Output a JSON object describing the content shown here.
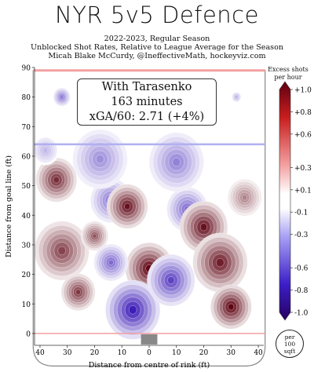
{
  "chart_data": {
    "type": "heatmap",
    "title": "NYR 5v5 Defence",
    "subtitle_lines": [
      "2022-2023, Regular Season",
      "Unblocked Shot Rates, Relative to League Average for the Season",
      "Micah Blake McCurdy, @IneffectiveMath, hockeyviz.com"
    ],
    "xlabel": "Distance from centre of rink (ft)",
    "ylabel": "Distance from goal line (ft)",
    "xlim": [
      42,
      -42
    ],
    "ylim": [
      -4,
      90
    ],
    "xticks": [
      "40",
      "30",
      "20",
      "10",
      "0",
      "10",
      "20",
      "30",
      "40"
    ],
    "xtick_values": [
      40,
      30,
      20,
      10,
      0,
      -10,
      -20,
      -30,
      -40
    ],
    "yticks": [
      0,
      10,
      20,
      30,
      40,
      50,
      60,
      70,
      80,
      90
    ],
    "annotation": {
      "line1": "With Tarasenko",
      "line2": "163 minutes",
      "line3": "xGA/60: 2.71 (+4%)"
    },
    "colorbar": {
      "title": "Excess shots per hour",
      "ticks": [
        "+1.0",
        "+0.8",
        "+0.6",
        "+0.3",
        "+0.1",
        "-0.1",
        "-0.3",
        "-0.6",
        "-0.8",
        "-1.0"
      ],
      "tick_values": [
        1.0,
        0.8,
        0.6,
        0.3,
        0.1,
        -0.1,
        -0.3,
        -0.6,
        -0.8,
        -1.0
      ],
      "range": [
        -1.0,
        1.0
      ]
    },
    "unit_badge": [
      "per",
      "100",
      "sqft"
    ],
    "blobs": [
      {
        "x": 34,
        "y": 52,
        "v": 0.85,
        "r": 6
      },
      {
        "x": 32,
        "y": 28,
        "v": 0.75,
        "r": 8
      },
      {
        "x": 26,
        "y": 14,
        "v": 0.8,
        "r": 5
      },
      {
        "x": 20,
        "y": 33,
        "v": 0.7,
        "r": 4
      },
      {
        "x": 14,
        "y": 45,
        "v": -0.55,
        "r": 6
      },
      {
        "x": 8,
        "y": 43,
        "v": 0.95,
        "r": 6
      },
      {
        "x": 0,
        "y": 22,
        "v": 1.0,
        "r": 7
      },
      {
        "x": 6,
        "y": 8,
        "v": -0.9,
        "r": 8
      },
      {
        "x": 14,
        "y": 24,
        "v": -0.6,
        "r": 5
      },
      {
        "x": -8,
        "y": 18,
        "v": -0.75,
        "r": 7
      },
      {
        "x": -14,
        "y": 42,
        "v": -0.6,
        "r": 6
      },
      {
        "x": -20,
        "y": 36,
        "v": 0.95,
        "r": 7
      },
      {
        "x": -26,
        "y": 24,
        "v": 0.9,
        "r": 8
      },
      {
        "x": -30,
        "y": 9,
        "v": 1.0,
        "r": 6
      },
      {
        "x": -35,
        "y": 46,
        "v": 0.5,
        "r": 5
      },
      {
        "x": 18,
        "y": 59,
        "v": -0.45,
        "r": 8
      },
      {
        "x": -10,
        "y": 58,
        "v": -0.5,
        "r": 8
      },
      {
        "x": 38,
        "y": 62,
        "v": -0.3,
        "r": 4
      },
      {
        "x": 32,
        "y": 80,
        "v": -0.6,
        "r": 2.5
      },
      {
        "x": -32,
        "y": 80,
        "v": -0.4,
        "r": 1.5
      }
    ]
  }
}
